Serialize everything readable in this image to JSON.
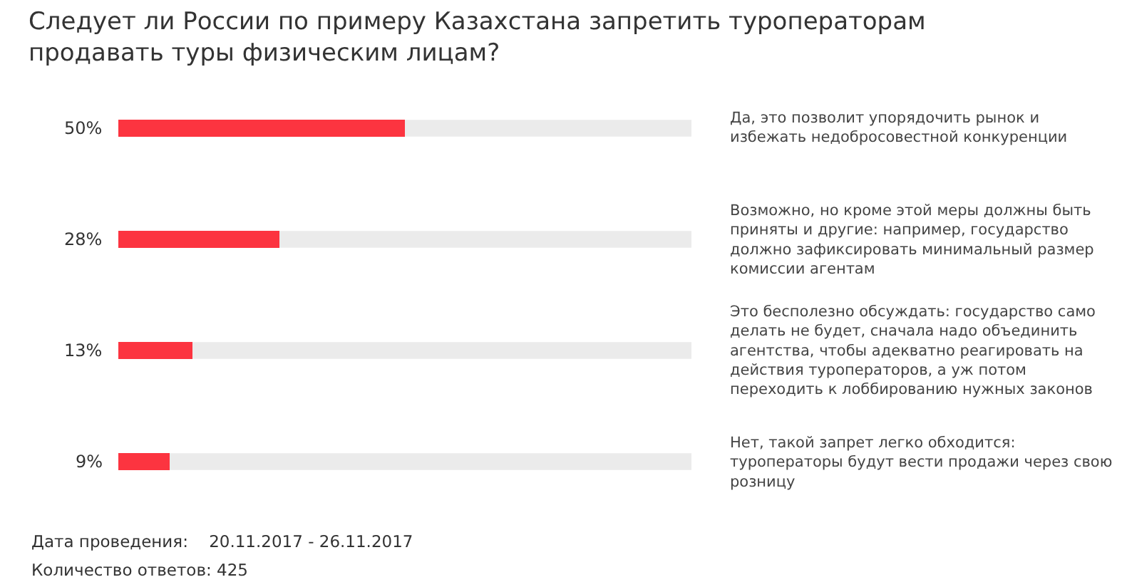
{
  "chart_data": {
    "type": "bar",
    "orientation": "horizontal",
    "title": "Следует ли России по примеру Казахстана запретить туроператорам продавать туры физическим лицам?",
    "categories": [
      "Да, это позволит упорядочить рынок и избежать недобросовестной конкуренции",
      "Возможно, но кроме этой меры должны быть приняты и другие: например, государство должно зафиксировать минимальный размер комиссии агентам",
      "Это бесполезно обсуждать: государство само делать не будет, сначала надо объединить агентства, чтобы адекватно реагировать на действия туроператоров, а уж потом переходить к лоббированию нужных законов",
      "Нет, такой запрет легко обходится: туроператоры будут вести продажи через свою розницу"
    ],
    "values": [
      50,
      28,
      13,
      9
    ],
    "value_labels": [
      "50%",
      "28%",
      "13%",
      "9%"
    ],
    "color": "#fc3440",
    "xlim": [
      0,
      100
    ],
    "tick_labels": false,
    "grid": false,
    "legend": false,
    "annotations": [
      "Дата проведения:    20.11.2017 - 26.11.2017",
      "Количество ответов: 425"
    ]
  }
}
